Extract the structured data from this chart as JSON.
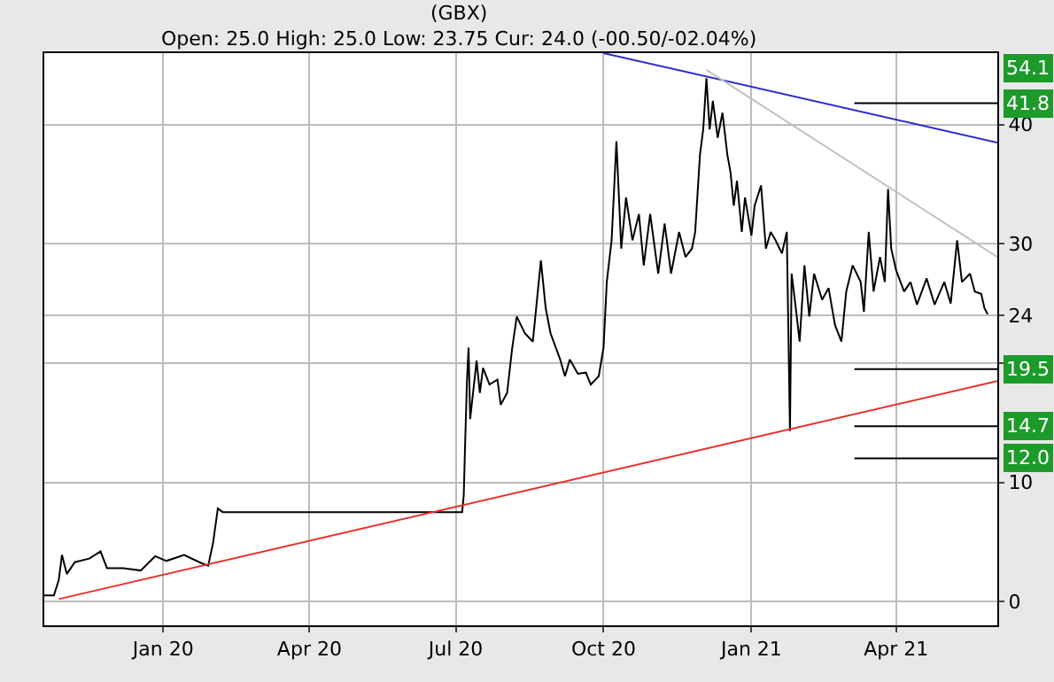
{
  "chart_data": {
    "type": "line",
    "title": "(GBX)",
    "subtitle": "Open: 25.0 High: 25.0 Low: 23.75 Cur: 24.0 (-00.50/-02.04%)",
    "xlim": [
      "2019-10-19",
      "2021-06-03"
    ],
    "xticks": [
      {
        "value": "2020-01-01",
        "label": "Jan 20"
      },
      {
        "value": "2020-04-01",
        "label": "Apr 20"
      },
      {
        "value": "2020-07-01",
        "label": "Jul 20"
      },
      {
        "value": "2020-10-01",
        "label": "Oct 20"
      },
      {
        "value": "2021-01-01",
        "label": "Jan 21"
      },
      {
        "value": "2021-04-01",
        "label": "Apr 21"
      }
    ],
    "ylim": [
      -2,
      46
    ],
    "yticks": [
      0,
      10,
      {
        "value": 20,
        "label": null
      },
      {
        "value": 24,
        "label": "24"
      },
      30,
      40
    ],
    "grid": true,
    "marker": "none",
    "line_style": "solid",
    "series": [
      {
        "color": "#000000",
        "x": [
          "2019-10-19",
          "2019-10-25",
          "2019-10-28",
          "2019-10-30",
          "2019-11-02",
          "2019-11-07",
          "2019-11-16",
          "2019-11-23",
          "2019-11-27",
          "2019-12-07",
          "2019-12-18",
          "2019-12-27",
          "2020-01-03",
          "2020-01-14",
          "2020-01-25",
          "2020-01-29",
          "2020-02-01",
          "2020-02-04",
          "2020-02-07",
          "2020-07-05",
          "2020-07-06",
          "2020-07-07",
          "2020-07-08",
          "2020-07-09",
          "2020-07-10",
          "2020-07-14",
          "2020-07-16",
          "2020-07-18",
          "2020-07-22",
          "2020-07-27",
          "2020-07-29",
          "2020-08-02",
          "2020-08-05",
          "2020-08-08",
          "2020-08-13",
          "2020-08-18",
          "2020-08-23",
          "2020-08-26",
          "2020-08-29",
          "2020-09-04",
          "2020-09-07",
          "2020-09-10",
          "2020-09-15",
          "2020-09-20",
          "2020-09-23",
          "2020-09-28",
          "2020-10-01",
          "2020-10-03",
          "2020-10-06",
          "2020-10-09",
          "2020-10-12",
          "2020-10-15",
          "2020-10-19",
          "2020-10-23",
          "2020-10-26",
          "2020-10-30",
          "2020-11-04",
          "2020-11-08",
          "2020-11-12",
          "2020-11-17",
          "2020-11-21",
          "2020-11-25",
          "2020-11-27",
          "2020-11-30",
          "2020-12-02",
          "2020-12-04",
          "2020-12-06",
          "2020-12-08",
          "2020-12-11",
          "2020-12-14",
          "2020-12-17",
          "2020-12-19",
          "2020-12-21",
          "2020-12-23",
          "2020-12-26",
          "2020-12-28",
          "2021-01-01",
          "2021-01-03",
          "2021-01-07",
          "2021-01-10",
          "2021-01-13",
          "2021-01-16",
          "2021-01-20",
          "2021-01-23",
          "2021-01-25",
          "2021-01-26",
          "2021-01-28",
          "2021-01-31",
          "2021-02-03",
          "2021-02-06",
          "2021-02-09",
          "2021-02-14",
          "2021-02-18",
          "2021-02-22",
          "2021-02-26",
          "2021-03-01",
          "2021-03-05",
          "2021-03-10",
          "2021-03-12",
          "2021-03-15",
          "2021-03-18",
          "2021-03-22",
          "2021-03-25",
          "2021-03-27",
          "2021-03-29",
          "2021-04-01",
          "2021-04-06",
          "2021-04-10",
          "2021-04-14",
          "2021-04-20",
          "2021-04-25",
          "2021-05-01",
          "2021-05-05",
          "2021-05-09",
          "2021-05-12",
          "2021-05-17",
          "2021-05-20",
          "2021-05-24",
          "2021-05-26",
          "2021-05-28"
        ],
        "values": [
          0.5,
          0.5,
          1.8,
          3.9,
          2.3,
          3.3,
          3.6,
          4.2,
          2.8,
          2.8,
          2.6,
          3.8,
          3.4,
          3.9,
          3.2,
          3.0,
          4.9,
          7.8,
          7.5,
          7.5,
          8.9,
          13.9,
          18.5,
          21.3,
          15.3,
          20.2,
          17.5,
          19.6,
          18.2,
          18.6,
          16.5,
          17.5,
          21.1,
          23.9,
          22.5,
          21.8,
          28.6,
          24.6,
          22.5,
          20.3,
          18.9,
          20.3,
          19.1,
          19.2,
          18.2,
          18.9,
          21.3,
          26.8,
          30.3,
          38.6,
          29.6,
          33.9,
          30.3,
          32.5,
          28.2,
          32.5,
          27.5,
          31.7,
          27.5,
          31.0,
          28.9,
          29.6,
          31.0,
          37.5,
          39.6,
          43.9,
          39.6,
          42.0,
          38.9,
          41.0,
          37.5,
          36.0,
          33.2,
          35.3,
          31.0,
          33.9,
          30.7,
          33.2,
          34.9,
          29.6,
          31.0,
          30.3,
          29.2,
          31.0,
          14.3,
          27.5,
          25.3,
          21.8,
          28.2,
          23.9,
          27.5,
          25.3,
          26.3,
          23.2,
          21.8,
          26.0,
          28.2,
          26.8,
          24.3,
          31.0,
          26.0,
          28.9,
          26.8,
          34.6,
          29.6,
          27.8,
          26.0,
          26.8,
          24.9,
          27.1,
          24.9,
          26.8,
          25.0,
          30.3,
          26.8,
          27.5,
          26.0,
          25.8,
          24.6,
          24.1
        ]
      },
      {
        "color": "#e8302a",
        "x": [
          "2019-10-28",
          "2021-06-03"
        ],
        "values": [
          0.2,
          18.5
        ]
      },
      {
        "color": "#2b2bd0",
        "x": [
          "2020-10-01",
          "2021-06-03"
        ],
        "values": [
          46.0,
          38.5
        ]
      },
      {
        "color": "#c0c0c0",
        "x": [
          "2020-12-04",
          "2021-06-03"
        ],
        "values": [
          44.6,
          28.9
        ]
      }
    ],
    "ref_lines": [
      {
        "axis": "y",
        "value": 41.8,
        "label": "41.8",
        "color": "#000000"
      },
      {
        "axis": "y",
        "value": 19.5,
        "label": "19.5",
        "color": "#000000"
      },
      {
        "axis": "y",
        "value": 14.7,
        "label": "14.7",
        "color": "#000000"
      },
      {
        "axis": "y",
        "value": 12.0,
        "label": "12.0",
        "color": "#000000"
      }
    ],
    "annotations": [
      "54.1"
    ]
  }
}
